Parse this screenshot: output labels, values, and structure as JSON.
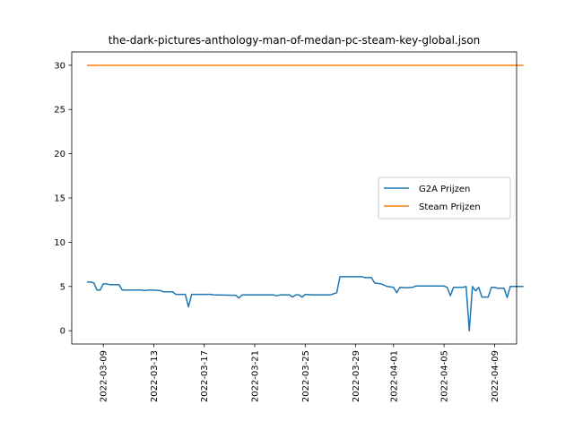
{
  "chart_data": {
    "type": "line",
    "title": "the-dark-pictures-anthology-man-of-medan-pc-steam-key-global.json",
    "xlabel": "",
    "ylabel": "",
    "x_type": "date",
    "xlim": [
      "2022-03-06T12:00",
      "2022-04-10T18:00"
    ],
    "ylim": [
      -1.5,
      31.5
    ],
    "y_ticks": [
      0,
      5,
      10,
      15,
      20,
      25,
      30
    ],
    "x_ticks": [
      "2022-03-09",
      "2022-03-13",
      "2022-03-17",
      "2022-03-21",
      "2022-03-25",
      "2022-03-29",
      "2022-04-01",
      "2022-04-05",
      "2022-04-09"
    ],
    "legend_position": "center-right",
    "grid": false,
    "series": [
      {
        "name": "G2A Prijzen",
        "color": "#1f77b4",
        "points": [
          [
            "2022-03-07T18:00",
            5.5
          ],
          [
            "2022-03-08T00:00",
            5.5
          ],
          [
            "2022-03-08T06:00",
            5.4
          ],
          [
            "2022-03-08T12:00",
            4.6
          ],
          [
            "2022-03-08T18:00",
            4.6
          ],
          [
            "2022-03-09T00:00",
            5.3
          ],
          [
            "2022-03-09T06:00",
            5.3
          ],
          [
            "2022-03-09T12:00",
            5.2
          ],
          [
            "2022-03-10T00:00",
            5.2
          ],
          [
            "2022-03-10T06:00",
            5.2
          ],
          [
            "2022-03-10T12:00",
            4.6
          ],
          [
            "2022-03-12T00:00",
            4.6
          ],
          [
            "2022-03-12T06:00",
            4.55
          ],
          [
            "2022-03-12T18:00",
            4.6
          ],
          [
            "2022-03-13T12:00",
            4.55
          ],
          [
            "2022-03-13T18:00",
            4.4
          ],
          [
            "2022-03-14T12:00",
            4.4
          ],
          [
            "2022-03-14T18:00",
            4.1
          ],
          [
            "2022-03-15T12:00",
            4.1
          ],
          [
            "2022-03-15T18:00",
            2.7
          ],
          [
            "2022-03-16T00:00",
            4.1
          ],
          [
            "2022-03-17T12:00",
            4.1
          ],
          [
            "2022-03-17T18:00",
            4.05
          ],
          [
            "2022-03-19T12:00",
            4.0
          ],
          [
            "2022-03-19T18:00",
            3.7
          ],
          [
            "2022-03-20T00:00",
            4.05
          ],
          [
            "2022-03-22T12:00",
            4.05
          ],
          [
            "2022-03-22T18:00",
            3.95
          ],
          [
            "2022-03-23T00:00",
            4.05
          ],
          [
            "2022-03-23T18:00",
            4.05
          ],
          [
            "2022-03-24T00:00",
            3.8
          ],
          [
            "2022-03-24T06:00",
            4.05
          ],
          [
            "2022-03-24T12:00",
            4.05
          ],
          [
            "2022-03-24T18:00",
            3.8
          ],
          [
            "2022-03-25T00:00",
            4.1
          ],
          [
            "2022-03-25T12:00",
            4.05
          ],
          [
            "2022-03-27T00:00",
            4.05
          ],
          [
            "2022-03-27T12:00",
            4.3
          ],
          [
            "2022-03-27T18:00",
            6.1
          ],
          [
            "2022-03-29T12:00",
            6.1
          ],
          [
            "2022-03-29T18:00",
            6.0
          ],
          [
            "2022-03-30T06:00",
            6.0
          ],
          [
            "2022-03-30T12:00",
            5.4
          ],
          [
            "2022-03-31T00:00",
            5.3
          ],
          [
            "2022-03-31T12:00",
            5.0
          ],
          [
            "2022-04-01T00:00",
            4.9
          ],
          [
            "2022-04-01T06:00",
            4.3
          ],
          [
            "2022-04-01T12:00",
            4.9
          ],
          [
            "2022-04-02T00:00",
            4.85
          ],
          [
            "2022-04-02T12:00",
            4.9
          ],
          [
            "2022-04-02T18:00",
            5.05
          ],
          [
            "2022-04-05T00:00",
            5.05
          ],
          [
            "2022-04-05T06:00",
            4.9
          ],
          [
            "2022-04-05T12:00",
            3.95
          ],
          [
            "2022-04-05T18:00",
            4.9
          ],
          [
            "2022-04-06T12:00",
            4.9
          ],
          [
            "2022-04-06T18:00",
            5.0
          ],
          [
            "2022-04-07T00:00",
            0.0
          ],
          [
            "2022-04-07T06:00",
            5.0
          ],
          [
            "2022-04-07T12:00",
            4.5
          ],
          [
            "2022-04-07T18:00",
            4.9
          ],
          [
            "2022-04-08T00:00",
            3.8
          ],
          [
            "2022-04-08T12:00",
            3.8
          ],
          [
            "2022-04-08T18:00",
            4.9
          ],
          [
            "2022-04-09T00:00",
            4.9
          ],
          [
            "2022-04-09T06:00",
            4.8
          ],
          [
            "2022-04-09T18:00",
            4.8
          ],
          [
            "2022-04-10T00:00",
            3.75
          ],
          [
            "2022-04-10T06:00",
            5.0
          ],
          [
            "2022-04-10T12:00",
            5.0
          ],
          [
            "2022-04-11T06:00",
            5.0
          ]
        ]
      },
      {
        "name": "Steam Prijzen",
        "color": "#ff7f0e",
        "points": [
          [
            "2022-03-07T18:00",
            30
          ],
          [
            "2022-04-11T06:00",
            30
          ]
        ]
      }
    ]
  }
}
